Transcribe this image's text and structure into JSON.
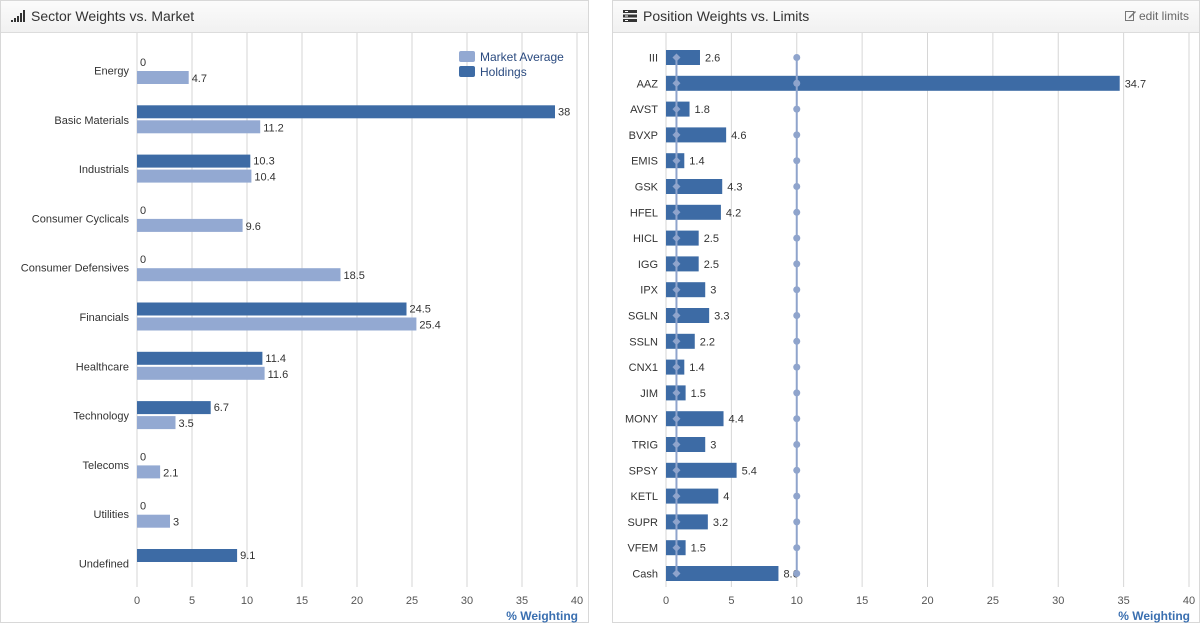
{
  "sector_panel": {
    "title": "Sector Weights vs. Market",
    "icon": "bar-chart-icon"
  },
  "position_panel": {
    "title": "Position Weights vs. Limits",
    "icon": "list-icon",
    "edit_label": "edit limits",
    "edit_icon": "pencil-icon"
  },
  "colors": {
    "holdings": "#3d6ba5",
    "market": "#93a9d2",
    "limit_line": "#8fa4cc",
    "axis_title": "#3a6fb0"
  },
  "chart_data": [
    {
      "type": "bar",
      "orientation": "horizontal",
      "categories": [
        "Energy",
        "Basic Materials",
        "Industrials",
        "Consumer Cyclicals",
        "Consumer Defensives",
        "Financials",
        "Healthcare",
        "Technology",
        "Telecoms",
        "Utilities",
        "Undefined"
      ],
      "series": [
        {
          "name": "Holdings",
          "values": [
            0,
            38,
            10.3,
            0,
            0,
            24.5,
            11.4,
            6.7,
            0,
            0,
            9.1
          ]
        },
        {
          "name": "Market Average",
          "values": [
            4.7,
            11.2,
            10.4,
            9.6,
            18.5,
            25.4,
            11.6,
            3.5,
            2.1,
            3,
            null
          ]
        }
      ],
      "legend": [
        "Market Average",
        "Holdings"
      ],
      "legend_position": "top-right",
      "xlabel": "% Weighting",
      "xlim": [
        0,
        40
      ],
      "xticks": [
        0,
        5,
        10,
        15,
        20,
        25,
        30,
        35,
        40
      ],
      "grid": true
    },
    {
      "type": "bar",
      "orientation": "horizontal",
      "categories": [
        "III",
        "AAZ",
        "AVST",
        "BVXP",
        "EMIS",
        "GSK",
        "HFEL",
        "HICL",
        "IGG",
        "IPX",
        "SGLN",
        "SSLN",
        "CNX1",
        "JIM",
        "MONY",
        "TRIG",
        "SPSY",
        "KETL",
        "SUPR",
        "VFEM",
        "Cash"
      ],
      "series": [
        {
          "values": [
            2.6,
            34.7,
            1.8,
            4.6,
            1.4,
            4.3,
            4.2,
            2.5,
            2.5,
            3,
            3.3,
            2.2,
            1.4,
            1.5,
            4.4,
            3,
            5.4,
            4,
            3.2,
            1.5,
            8.6
          ]
        }
      ],
      "limits": [
        0.8,
        10
      ],
      "xlabel": "% Weighting",
      "xlim": [
        0,
        40
      ],
      "xticks": [
        0,
        5,
        10,
        15,
        20,
        25,
        30,
        35,
        40
      ],
      "grid": true
    }
  ]
}
